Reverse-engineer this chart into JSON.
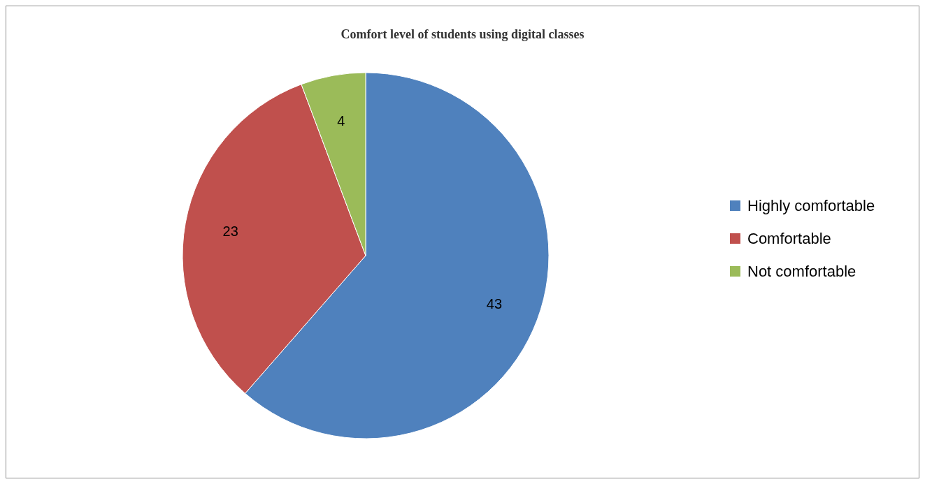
{
  "chart_data": {
    "type": "pie",
    "title": "Comfort level of students using digital classes",
    "categories": [
      "Highly comfortable",
      "Comfortable",
      "Not comfortable"
    ],
    "values": [
      43,
      23,
      4
    ],
    "colors": [
      "#4f81bd",
      "#c0504d",
      "#9bbb59"
    ],
    "data_labels": true,
    "legend": "right"
  }
}
